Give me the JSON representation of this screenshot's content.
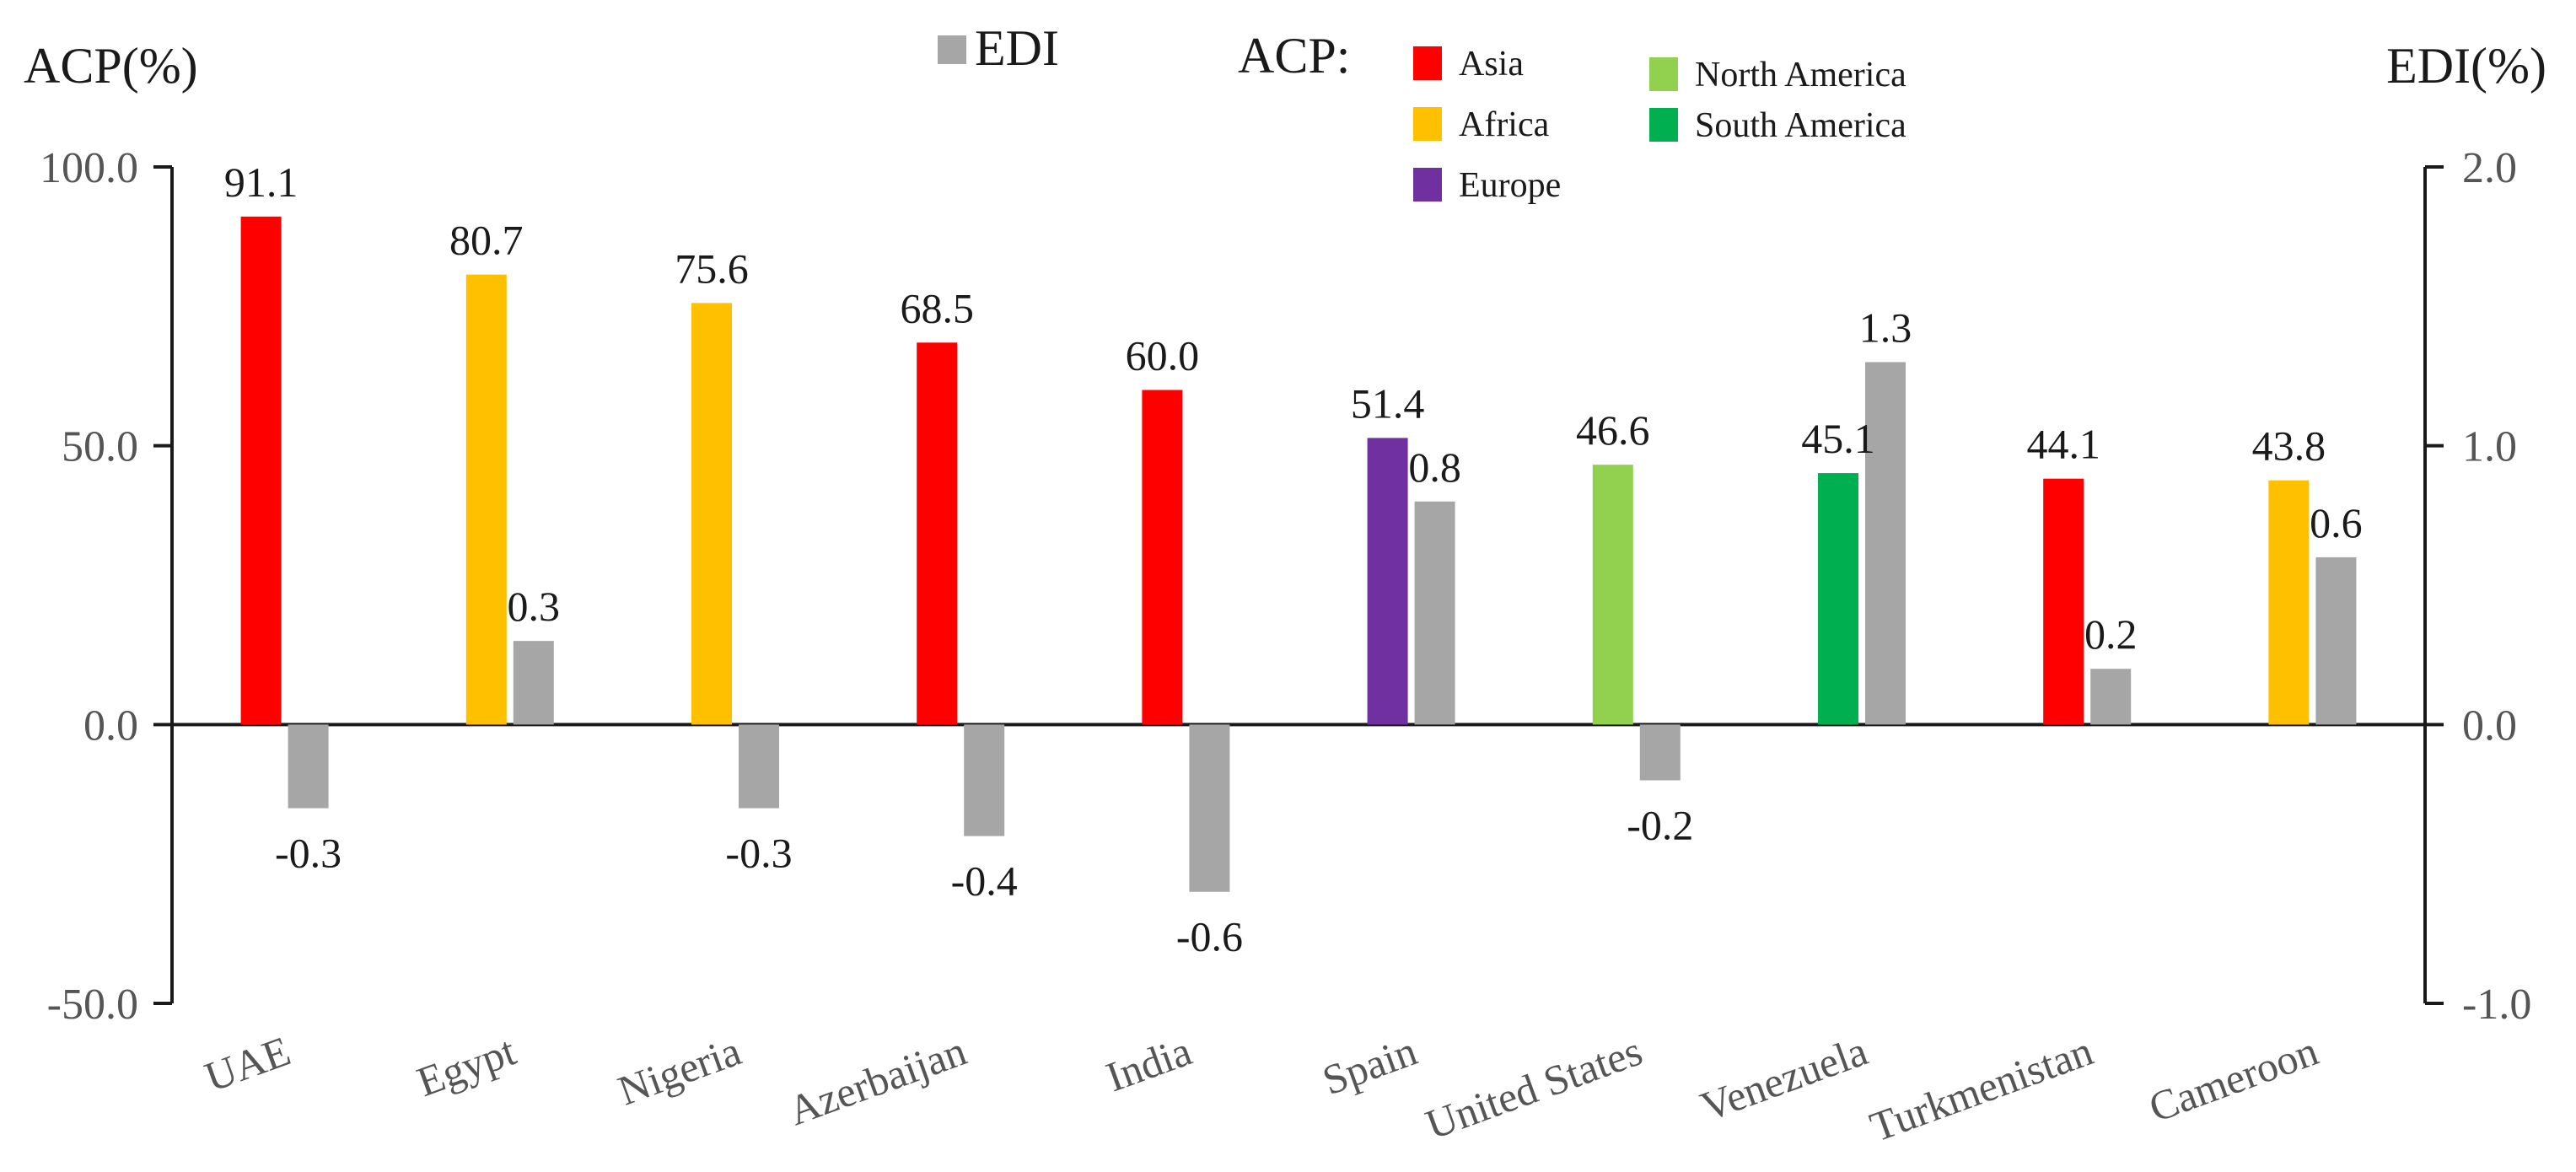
{
  "chart_data": {
    "type": "bar",
    "categories": [
      "UAE",
      "Egypt",
      "Nigeria",
      "Azerbaijan",
      "India",
      "Spain",
      "United States",
      "Venezuela",
      "Turkmenistan",
      "Cameroon"
    ],
    "series": [
      {
        "name": "ACP",
        "axis": "left",
        "values": [
          91.1,
          80.7,
          75.6,
          68.5,
          60.0,
          51.4,
          46.6,
          45.1,
          44.1,
          43.8
        ],
        "value_labels": [
          "91.1",
          "80.7",
          "75.6",
          "68.5",
          "60.0",
          "51.4",
          "46.6",
          "45.1",
          "44.1",
          "43.8"
        ],
        "regions": [
          "Asia",
          "Africa",
          "Africa",
          "Asia",
          "Asia",
          "Europe",
          "North America",
          "South America",
          "Asia",
          "Africa"
        ]
      },
      {
        "name": "EDI",
        "axis": "right",
        "color": "#a6a6a6",
        "values": [
          -0.3,
          0.3,
          -0.3,
          -0.4,
          -0.6,
          0.8,
          -0.2,
          1.3,
          0.2,
          0.6
        ],
        "value_labels": [
          "-0.3",
          "0.3",
          "-0.3",
          "-0.4",
          "-0.6",
          "0.8",
          "-0.2",
          "1.3",
          "0.2",
          "0.6"
        ]
      }
    ],
    "left_axis": {
      "label": "ACP(%)",
      "range": [
        -50,
        100
      ],
      "ticks": [
        100,
        50,
        0,
        -50
      ],
      "tick_labels": [
        "100.0",
        "50.0",
        "0.0",
        "-50.0"
      ]
    },
    "right_axis": {
      "label": "EDI(%)",
      "range": [
        -1,
        2
      ],
      "ticks": [
        2,
        1,
        0,
        -1
      ],
      "tick_labels": [
        "2.0",
        "1.0",
        "0.0",
        "-1.0"
      ]
    },
    "legend": {
      "placement": "top",
      "edi_label": "EDI",
      "acp_label": "ACP:",
      "regions": [
        {
          "name": "Asia",
          "color": "#ff0000"
        },
        {
          "name": "Africa",
          "color": "#ffc000"
        },
        {
          "name": "Europe",
          "color": "#7030a0"
        },
        {
          "name": "North America",
          "color": "#92d050"
        },
        {
          "name": "South America",
          "color": "#00b050"
        }
      ]
    },
    "grid": false
  }
}
